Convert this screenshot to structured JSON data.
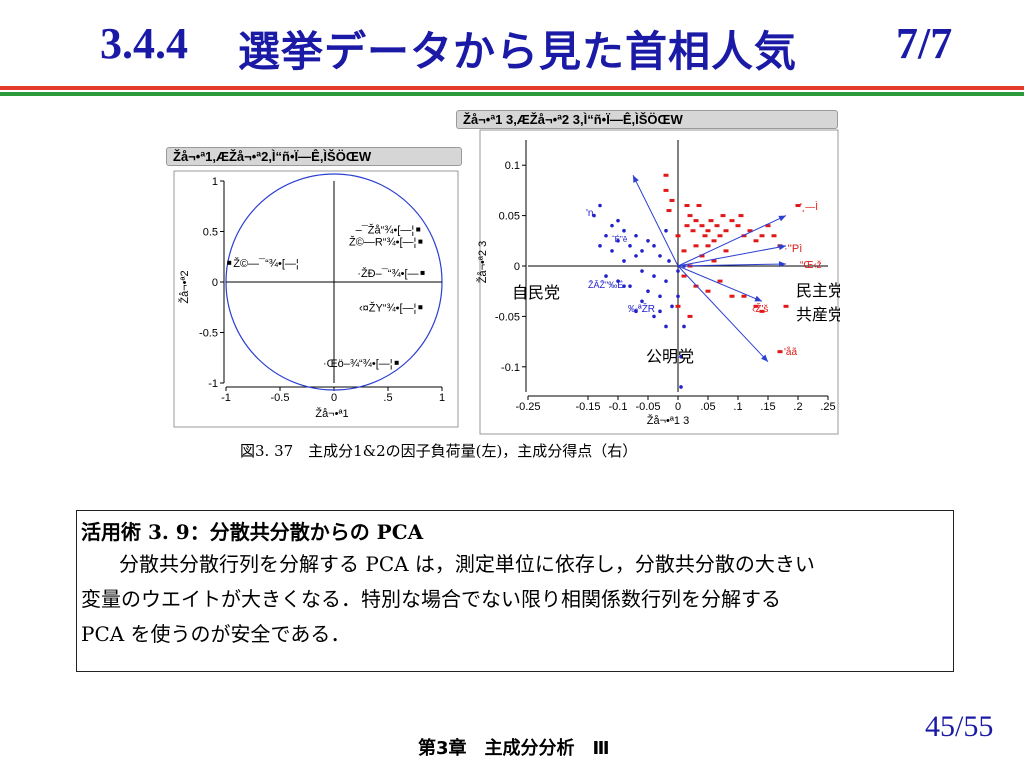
{
  "header": {
    "section": "3.4.4",
    "title": "選挙データから見た首相人気",
    "page": "7/7"
  },
  "left_panel": {
    "header": "Žå¬•ª1,ÆŽå¬•ª2,Ì“ñ•Ï—Ê,ÌŠÖŒW",
    "ylabel": "Žå¬•ª2",
    "xlabel": "Žå¬•ª1",
    "point_labels": [
      "Ž©—¯“¾•[—¦",
      "–¯Žå“¾•[—¦",
      "Ž©—R“¾•[—¦",
      "·ŽÐ–¯“¾•[—",
      "‹¤ŽY“¾•[—¦",
      "·Œö–¾“¾•[—¦"
    ]
  },
  "right_panel": {
    "header": "Žå¬•ª1 3,ÆŽå¬•ª2 3,Ì“ñ•Ï—Ê,ÌŠÖŒW",
    "ylabel": "Žå¬•ª2 3",
    "xlabel": "Žå¬•ª1 3",
    "party_labels": [
      "自民党",
      "民主党",
      "共産党",
      "公明党"
    ],
    "red_labels": [
      "'¸—Ì",
      "·''Pì",
      "“Œ‹ž",
      "‹Ž'š",
      "'åã"
    ],
    "blue_labels": [
      "'n",
      "ˆÉ\"ê",
      "ŽÂŽ\"‰Ë",
      "‰ªŽR"
    ]
  },
  "chart_data": [
    {
      "type": "scatter",
      "title": "Žå¬•ª1,ÆŽå¬•ª2,Ì“ñ•Ï—Ê,ÌŠÖŒW",
      "xlabel": "Žå¬•ª1",
      "ylabel": "Žå¬•ª2",
      "xlim": [
        -1,
        1
      ],
      "ylim": [
        -1,
        1
      ],
      "xticks": [
        "-1",
        "-0.5",
        "0",
        ".5",
        "1"
      ],
      "yticks": [
        "1",
        "0.5",
        "0",
        "-0.5",
        "-1"
      ],
      "unit_circle": true,
      "points": [
        {
          "label": "Ž©—¯“¾•[—¦",
          "x": -0.97,
          "y": 0.19
        },
        {
          "label": "–¯Žå“¾•[—¦",
          "x": 0.78,
          "y": 0.52
        },
        {
          "label": "Ž©—R“¾•[—¦",
          "x": 0.8,
          "y": 0.4
        },
        {
          "label": "·ŽÐ–¯“¾•[—",
          "x": 0.82,
          "y": 0.09
        },
        {
          "label": "‹¤ŽY“¾•[—¦",
          "x": 0.8,
          "y": -0.25
        },
        {
          "label": "·Œö–¾“¾•[—¦",
          "x": 0.58,
          "y": -0.8
        }
      ]
    },
    {
      "type": "scatter",
      "title": "Žå¬•ª1 3,ÆŽå¬•ª2 3,Ì“ñ•Ï—Ê,ÌŠÖŒW",
      "xlabel": "Žå¬•ª1 3",
      "ylabel": "Žå¬•ª2 3",
      "xlim": [
        -0.25,
        0.25
      ],
      "ylim": [
        -0.125,
        0.125
      ],
      "xticks": [
        {
          "value": -0.25,
          "label": "-0.25"
        },
        {
          "value": -0.15,
          "label": "-0.15"
        },
        {
          "value": -0.1,
          "label": "-0.1"
        },
        {
          "value": -0.05,
          "label": "-0.05"
        },
        {
          "value": 0,
          "label": "0"
        },
        {
          "value": 0.05,
          "label": ".05"
        },
        {
          "value": 0.1,
          "label": ".1"
        },
        {
          "value": 0.15,
          "label": ".15"
        },
        {
          "value": 0.2,
          "label": ".2"
        },
        {
          "value": 0.25,
          "label": ".25"
        }
      ],
      "yticks": [
        {
          "value": 0.1,
          "label": "0.1"
        },
        {
          "value": 0.05,
          "label": "0.05"
        },
        {
          "value": 0,
          "label": "0"
        },
        {
          "value": -0.05,
          "label": "-0.05"
        },
        {
          "value": -0.1,
          "label": "-0.1"
        }
      ],
      "arrows": [
        {
          "x": -0.075,
          "y": 0.09
        },
        {
          "x": 0.18,
          "y": 0.05
        },
        {
          "x": 0.18,
          "y": 0.02
        },
        {
          "x": 0.18,
          "y": 0.002
        },
        {
          "x": 0.14,
          "y": -0.035
        },
        {
          "x": 0.15,
          "y": -0.095
        }
      ],
      "series": [
        {
          "name": "",
          "color": "#2222cc",
          "points": [
            [
              -0.14,
              0.05
            ],
            [
              -0.13,
              0.06
            ],
            [
              -0.11,
              0.04
            ],
            [
              -0.12,
              0.03
            ],
            [
              -0.1,
              0.025
            ],
            [
              -0.09,
              0.035
            ],
            [
              -0.08,
              0.02
            ],
            [
              -0.07,
              0.03
            ],
            [
              -0.06,
              0.015
            ],
            [
              -0.05,
              0.025
            ],
            [
              -0.04,
              0.02
            ],
            [
              -0.03,
              0.01
            ],
            [
              -0.02,
              0.035
            ],
            [
              -0.13,
              0.02
            ],
            [
              -0.11,
              0.015
            ],
            [
              -0.09,
              0.005
            ],
            [
              -0.07,
              0.01
            ],
            [
              -0.12,
              -0.01
            ],
            [
              -0.1,
              -0.015
            ],
            [
              -0.08,
              -0.02
            ],
            [
              -0.06,
              -0.005
            ],
            [
              -0.05,
              -0.025
            ],
            [
              -0.04,
              -0.01
            ],
            [
              -0.03,
              -0.03
            ],
            [
              -0.02,
              -0.015
            ],
            [
              -0.01,
              -0.04
            ],
            [
              0.0,
              -0.03
            ],
            [
              -0.06,
              -0.035
            ],
            [
              -0.04,
              -0.05
            ],
            [
              -0.02,
              -0.06
            ],
            [
              0.005,
              -0.09
            ],
            [
              0.01,
              -0.06
            ],
            [
              -0.09,
              -0.02
            ],
            [
              -0.07,
              -0.045
            ],
            [
              0.0,
              -0.005
            ],
            [
              0.01,
              0.0
            ],
            [
              -0.015,
              0.005
            ],
            [
              0.005,
              -0.12
            ],
            [
              -0.03,
              -0.045
            ],
            [
              -0.1,
              0.045
            ]
          ]
        },
        {
          "name": "",
          "color": "#e01818",
          "points": [
            [
              -0.02,
              0.09
            ],
            [
              -0.02,
              0.075
            ],
            [
              -0.01,
              0.065
            ],
            [
              -0.015,
              0.055
            ],
            [
              0.0,
              0.03
            ],
            [
              0.015,
              0.06
            ],
            [
              0.02,
              0.05
            ],
            [
              0.025,
              0.035
            ],
            [
              0.03,
              0.045
            ],
            [
              0.04,
              0.04
            ],
            [
              0.045,
              0.03
            ],
            [
              0.05,
              0.035
            ],
            [
              0.055,
              0.045
            ],
            [
              0.06,
              0.025
            ],
            [
              0.065,
              0.04
            ],
            [
              0.07,
              0.03
            ],
            [
              0.075,
              0.05
            ],
            [
              0.08,
              0.035
            ],
            [
              0.09,
              0.045
            ],
            [
              0.1,
              0.04
            ],
            [
              0.105,
              0.05
            ],
            [
              0.11,
              0.03
            ],
            [
              0.12,
              0.035
            ],
            [
              0.13,
              0.025
            ],
            [
              0.14,
              0.03
            ],
            [
              0.15,
              0.04
            ],
            [
              0.16,
              0.03
            ],
            [
              0.05,
              0.02
            ],
            [
              0.03,
              0.02
            ],
            [
              0.01,
              0.015
            ],
            [
              0.02,
              0.0
            ],
            [
              0.04,
              0.01
            ],
            [
              0.06,
              0.005
            ],
            [
              0.08,
              0.015
            ],
            [
              0.01,
              -0.01
            ],
            [
              0.03,
              -0.02
            ],
            [
              0.05,
              -0.025
            ],
            [
              0.07,
              -0.015
            ],
            [
              0.09,
              -0.03
            ],
            [
              0.11,
              -0.03
            ],
            [
              0.13,
              -0.04
            ],
            [
              0.14,
              -0.045
            ],
            [
              0.0,
              -0.04
            ],
            [
              0.02,
              -0.05
            ],
            [
              0.17,
              0.02
            ],
            [
              0.18,
              -0.04
            ],
            [
              0.17,
              -0.085
            ],
            [
              0.2,
              0.06
            ],
            [
              0.035,
              0.06
            ],
            [
              0.015,
              0.04
            ]
          ]
        }
      ]
    }
  ],
  "caption": "図3. 37　主成分1&2の因子負荷量(左)，主成分得点（右）",
  "box": {
    "title_label": "活用術 3. 9：分散共分散からの PCA",
    "body": [
      "分散共分散行列を分解する PCA は，測定単位に依存し，分散共分散の大きい",
      "変量のウエイトが大きくなる．特別な場合でない限り相関係数行列を分解する",
      "PCA を使うのが安全である．"
    ]
  },
  "footer": {
    "page_number": "45/55",
    "chapter": "第3章　主成分分析　Ⅲ"
  },
  "colors": {
    "title": "#1a1aa6",
    "rule_red": "#e23b2b",
    "rule_green": "#2c9a3a",
    "blue_points": "#2222cc",
    "red_points": "#e01818"
  }
}
